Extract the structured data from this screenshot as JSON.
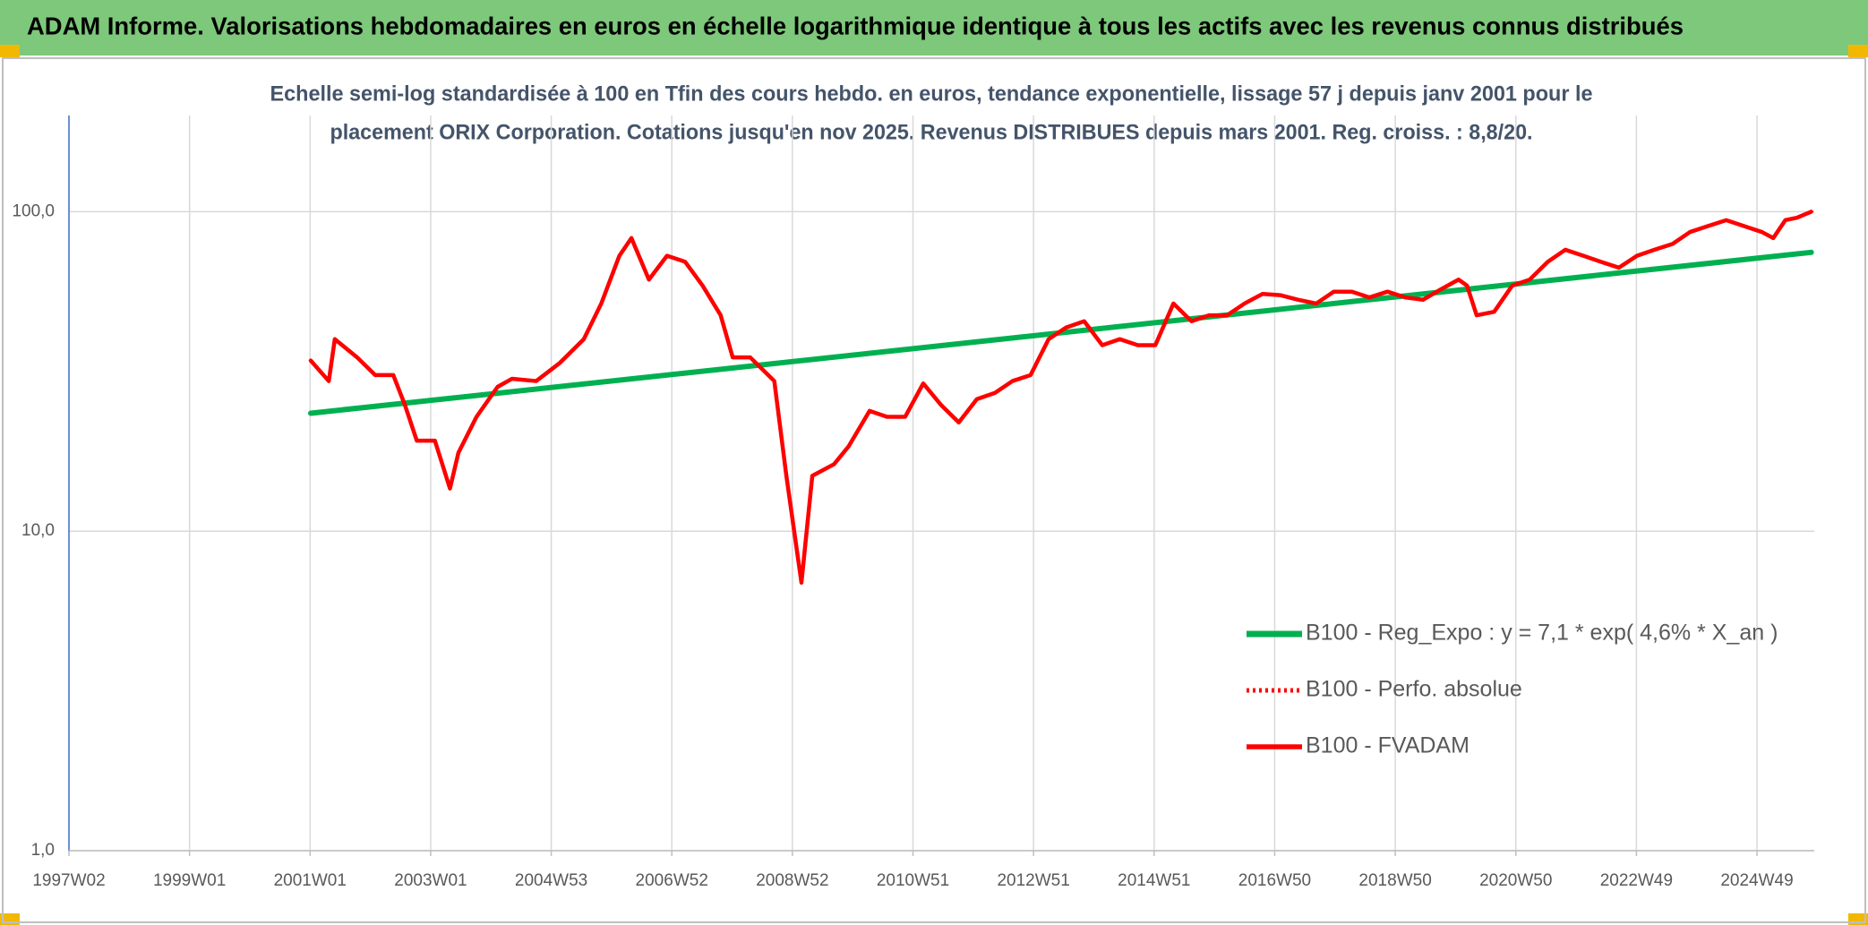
{
  "chart_data": {
    "type": "line",
    "title": "ADAM Informe. Valorisations hebdomadaires en euros en échelle logarithmique identique à tous les actifs avec les revenus connus distribués",
    "subtitle": [
      "Echelle semi-log standardisée à 100 en Tfin des cours hebdo. en euros, tendance exponentielle, lissage 57 j depuis janv 2001 pour le",
      "placement ORIX Corporation. Cotations jusqu'en nov 2025. Revenus DISTRIBUES depuis mars 2001. Reg. croiss. : 8,8/20."
    ],
    "log_y": true,
    "grid": true,
    "legend": "right",
    "xlim": [
      1997.0,
      2025.95
    ],
    "xticks": [
      {
        "value": 1997.0,
        "label": "1997W02"
      },
      {
        "value": 1999.0,
        "label": "1999W01"
      },
      {
        "value": 2001.0,
        "label": "2001W01"
      },
      {
        "value": 2003.0,
        "label": "2003W01"
      },
      {
        "value": 2005.0,
        "label": "2004W53"
      },
      {
        "value": 2007.0,
        "label": "2006W52"
      },
      {
        "value": 2009.0,
        "label": "2008W52"
      },
      {
        "value": 2011.0,
        "label": "2010W51"
      },
      {
        "value": 2013.0,
        "label": "2012W51"
      },
      {
        "value": 2015.0,
        "label": "2014W51"
      },
      {
        "value": 2017.0,
        "label": "2016W50"
      },
      {
        "value": 2019.0,
        "label": "2018W50"
      },
      {
        "value": 2021.0,
        "label": "2020W50"
      },
      {
        "value": 2023.0,
        "label": "2022W49"
      },
      {
        "value": 2025.0,
        "label": "2024W49"
      }
    ],
    "ylim": [
      1,
      200
    ],
    "yticks": [
      {
        "value": 1,
        "label": "1,0"
      },
      {
        "value": 10,
        "label": "10,0"
      },
      {
        "value": 100,
        "label": "100,0"
      }
    ],
    "series": [
      {
        "name": "B100 - Reg_Expo : y = 7,1 * exp( 4,6% *  X_an )",
        "color": "#00b050",
        "style": "solid",
        "x": [
          2001.01,
          2025.9
        ],
        "values": [
          23.4,
          74.6
        ]
      },
      {
        "name": "B100 - Perfo. absolue",
        "color": "#ff0000",
        "style": "dotted",
        "x": [
          2001.01,
          2001.31,
          2001.41,
          2001.78,
          2002.08,
          2002.38,
          2002.57,
          2002.77,
          2003.07,
          2003.32,
          2003.46,
          2003.76,
          2004.11,
          2004.35,
          2004.75,
          2005.14,
          2005.54,
          2005.83,
          2006.13,
          2006.33,
          2006.62,
          2006.92,
          2007.22,
          2007.51,
          2007.81,
          2008.01,
          2008.3,
          2008.7,
          2008.9,
          2009.15,
          2009.33,
          2009.69,
          2009.93,
          2010.28,
          2010.57,
          2010.87,
          2011.17,
          2011.46,
          2011.76,
          2012.06,
          2012.36,
          2012.65,
          2012.95,
          2013.25,
          2013.54,
          2013.84,
          2014.14,
          2014.43,
          2014.73,
          2015.02,
          2015.32,
          2015.62,
          2015.91,
          2016.21,
          2016.5,
          2016.8,
          2017.09,
          2017.39,
          2017.69,
          2017.98,
          2018.28,
          2018.57,
          2018.87,
          2019.17,
          2019.46,
          2019.76,
          2020.05,
          2020.19,
          2020.35,
          2020.64,
          2020.94,
          2021.23,
          2021.53,
          2021.82,
          2022.12,
          2022.41,
          2022.71,
          2023.01,
          2023.3,
          2023.6,
          2023.89,
          2024.19,
          2024.49,
          2024.78,
          2025.08,
          2025.27,
          2025.47,
          2025.66,
          2025.9
        ],
        "values": [
          34.2,
          29.5,
          39.9,
          35.0,
          30.8,
          30.8,
          24.9,
          19.2,
          19.2,
          13.6,
          17.6,
          22.8,
          28.3,
          30.0,
          29.5,
          33.6,
          39.9,
          51.6,
          72.8,
          82.7,
          61.3,
          72.8,
          69.7,
          58.7,
          47.4,
          35.0,
          35.0,
          29.5,
          14.9,
          6.9,
          14.9,
          16.2,
          18.4,
          23.8,
          22.8,
          22.8,
          29.0,
          24.9,
          21.9,
          25.9,
          27.1,
          29.5,
          30.8,
          39.9,
          43.4,
          45.4,
          38.2,
          39.9,
          38.2,
          38.2,
          51.6,
          45.4,
          47.4,
          47.4,
          51.6,
          55.3,
          54.8,
          53.0,
          51.6,
          56.2,
          56.2,
          53.9,
          56.2,
          53.9,
          53.0,
          57.2,
          61.3,
          58.7,
          47.4,
          48.6,
          58.7,
          61.3,
          69.7,
          76.0,
          72.8,
          69.7,
          66.8,
          72.8,
          76.0,
          79.3,
          86.4,
          90.2,
          94.1,
          90.2,
          86.4,
          82.7,
          94.1,
          95.7,
          100
        ]
      },
      {
        "name": "B100 - FVADAM",
        "color": "#ff0000",
        "style": "solid",
        "x": [
          2001.01,
          2001.31,
          2001.41,
          2001.78,
          2002.08,
          2002.38,
          2002.57,
          2002.77,
          2003.07,
          2003.32,
          2003.46,
          2003.76,
          2004.11,
          2004.35,
          2004.75,
          2005.14,
          2005.54,
          2005.83,
          2006.13,
          2006.33,
          2006.62,
          2006.92,
          2007.22,
          2007.51,
          2007.81,
          2008.01,
          2008.3,
          2008.7,
          2008.9,
          2009.15,
          2009.33,
          2009.69,
          2009.93,
          2010.28,
          2010.57,
          2010.87,
          2011.17,
          2011.46,
          2011.76,
          2012.06,
          2012.36,
          2012.65,
          2012.95,
          2013.25,
          2013.54,
          2013.84,
          2014.14,
          2014.43,
          2014.73,
          2015.02,
          2015.32,
          2015.62,
          2015.91,
          2016.21,
          2016.5,
          2016.8,
          2017.09,
          2017.39,
          2017.69,
          2017.98,
          2018.28,
          2018.57,
          2018.87,
          2019.17,
          2019.46,
          2019.76,
          2020.05,
          2020.19,
          2020.35,
          2020.64,
          2020.94,
          2021.23,
          2021.53,
          2021.82,
          2022.12,
          2022.41,
          2022.71,
          2023.01,
          2023.3,
          2023.6,
          2023.89,
          2024.19,
          2024.49,
          2024.78,
          2025.08,
          2025.27,
          2025.47,
          2025.66,
          2025.9
        ],
        "values": [
          34.2,
          29.5,
          39.9,
          35.0,
          30.8,
          30.8,
          24.9,
          19.2,
          19.2,
          13.6,
          17.6,
          22.8,
          28.3,
          30.0,
          29.5,
          33.6,
          39.9,
          51.6,
          72.8,
          82.7,
          61.3,
          72.8,
          69.7,
          58.7,
          47.4,
          35.0,
          35.0,
          29.5,
          14.9,
          6.9,
          14.9,
          16.2,
          18.4,
          23.8,
          22.8,
          22.8,
          29.0,
          24.9,
          21.9,
          25.9,
          27.1,
          29.5,
          30.8,
          39.9,
          43.4,
          45.4,
          38.2,
          39.9,
          38.2,
          38.2,
          51.6,
          45.4,
          47.4,
          47.4,
          51.6,
          55.3,
          54.8,
          53.0,
          51.6,
          56.2,
          56.2,
          53.9,
          56.2,
          53.9,
          53.0,
          57.2,
          61.3,
          58.7,
          47.4,
          48.6,
          58.7,
          61.3,
          69.7,
          76.0,
          72.8,
          69.7,
          66.8,
          72.8,
          76.0,
          79.3,
          86.4,
          90.2,
          94.1,
          90.2,
          86.4,
          82.7,
          94.1,
          95.7,
          100
        ]
      }
    ]
  }
}
